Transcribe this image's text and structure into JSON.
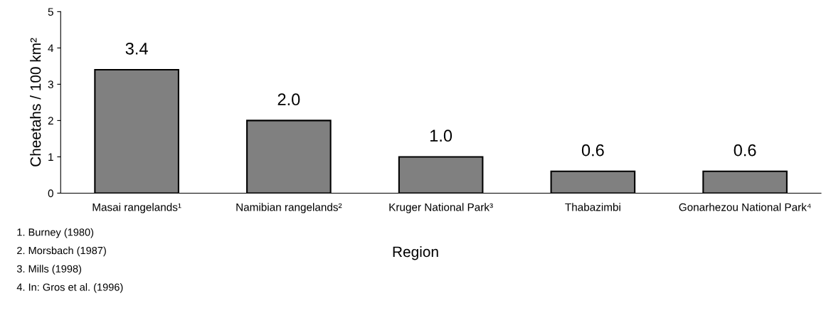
{
  "chart_data": {
    "type": "bar",
    "ylabel": "Cheetahs / 100 km²",
    "xlabel": "Region",
    "categories": [
      "Masai rangelands¹",
      "Namibian rangelands²",
      "Kruger National Park³",
      "Thabazimbi",
      "Gonarhezou National Park⁴"
    ],
    "values": [
      3.4,
      2.0,
      1.0,
      0.6,
      0.6
    ],
    "value_labels": [
      "3.4",
      "2.0",
      "1.0",
      "0.6",
      "0.6"
    ],
    "color": "#808080",
    "ylim": [
      0,
      5
    ],
    "yticks": [
      0,
      1,
      2,
      3,
      4,
      5
    ],
    "grid": false,
    "legend": false,
    "annotations": [
      "1. Burney (1980)",
      "2. Morsbach (1987)",
      "3. Mills (1998)",
      "4. In: Gros et al. (1996)"
    ]
  }
}
